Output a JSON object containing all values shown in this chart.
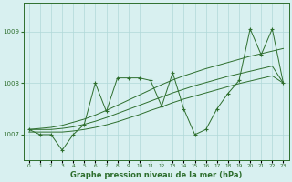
{
  "title": "Graphe pression niveau de la mer (hPa)",
  "bg_color": "#d8f0f0",
  "grid_color": "#b0d8d8",
  "line_color": "#2d6e2d",
  "xlim": [
    -0.5,
    23.5
  ],
  "ylim": [
    1006.5,
    1009.55
  ],
  "yticks": [
    1007,
    1008,
    1009
  ],
  "xtick_labels": [
    "0",
    "1",
    "2",
    "3",
    "4",
    "5",
    "6",
    "7",
    "8",
    "9",
    "10",
    "11",
    "12",
    "13",
    "14",
    "15",
    "16",
    "17",
    "18",
    "19",
    "20",
    "21",
    "22",
    "23"
  ],
  "y_jagged": [
    1007.1,
    1007.0,
    1007.0,
    1006.7,
    1007.0,
    1007.2,
    1008.0,
    1007.45,
    1008.1,
    1008.1,
    1008.1,
    1008.05,
    1007.55,
    1008.2,
    1007.5,
    1007.0,
    1007.1,
    1007.5,
    1007.8,
    1008.05,
    1009.05,
    1008.55,
    1009.05,
    1008.0
  ],
  "y_trend_high": [
    1007.1,
    1007.12,
    1007.14,
    1007.18,
    1007.24,
    1007.3,
    1007.38,
    1007.47,
    1007.57,
    1007.67,
    1007.77,
    1007.87,
    1007.97,
    1008.06,
    1008.14,
    1008.21,
    1008.28,
    1008.34,
    1008.4,
    1008.46,
    1008.52,
    1008.57,
    1008.62,
    1008.67
  ],
  "y_trend_mid": [
    1007.1,
    1007.1,
    1007.1,
    1007.12,
    1007.15,
    1007.2,
    1007.26,
    1007.33,
    1007.41,
    1007.49,
    1007.57,
    1007.65,
    1007.73,
    1007.81,
    1007.88,
    1007.95,
    1008.01,
    1008.07,
    1008.13,
    1008.18,
    1008.23,
    1008.28,
    1008.33,
    1008.0
  ],
  "y_trend_low": [
    1007.05,
    1007.05,
    1007.05,
    1007.05,
    1007.07,
    1007.1,
    1007.14,
    1007.19,
    1007.25,
    1007.32,
    1007.39,
    1007.47,
    1007.54,
    1007.62,
    1007.69,
    1007.75,
    1007.81,
    1007.87,
    1007.93,
    1007.99,
    1008.04,
    1008.09,
    1008.14,
    1008.0
  ]
}
